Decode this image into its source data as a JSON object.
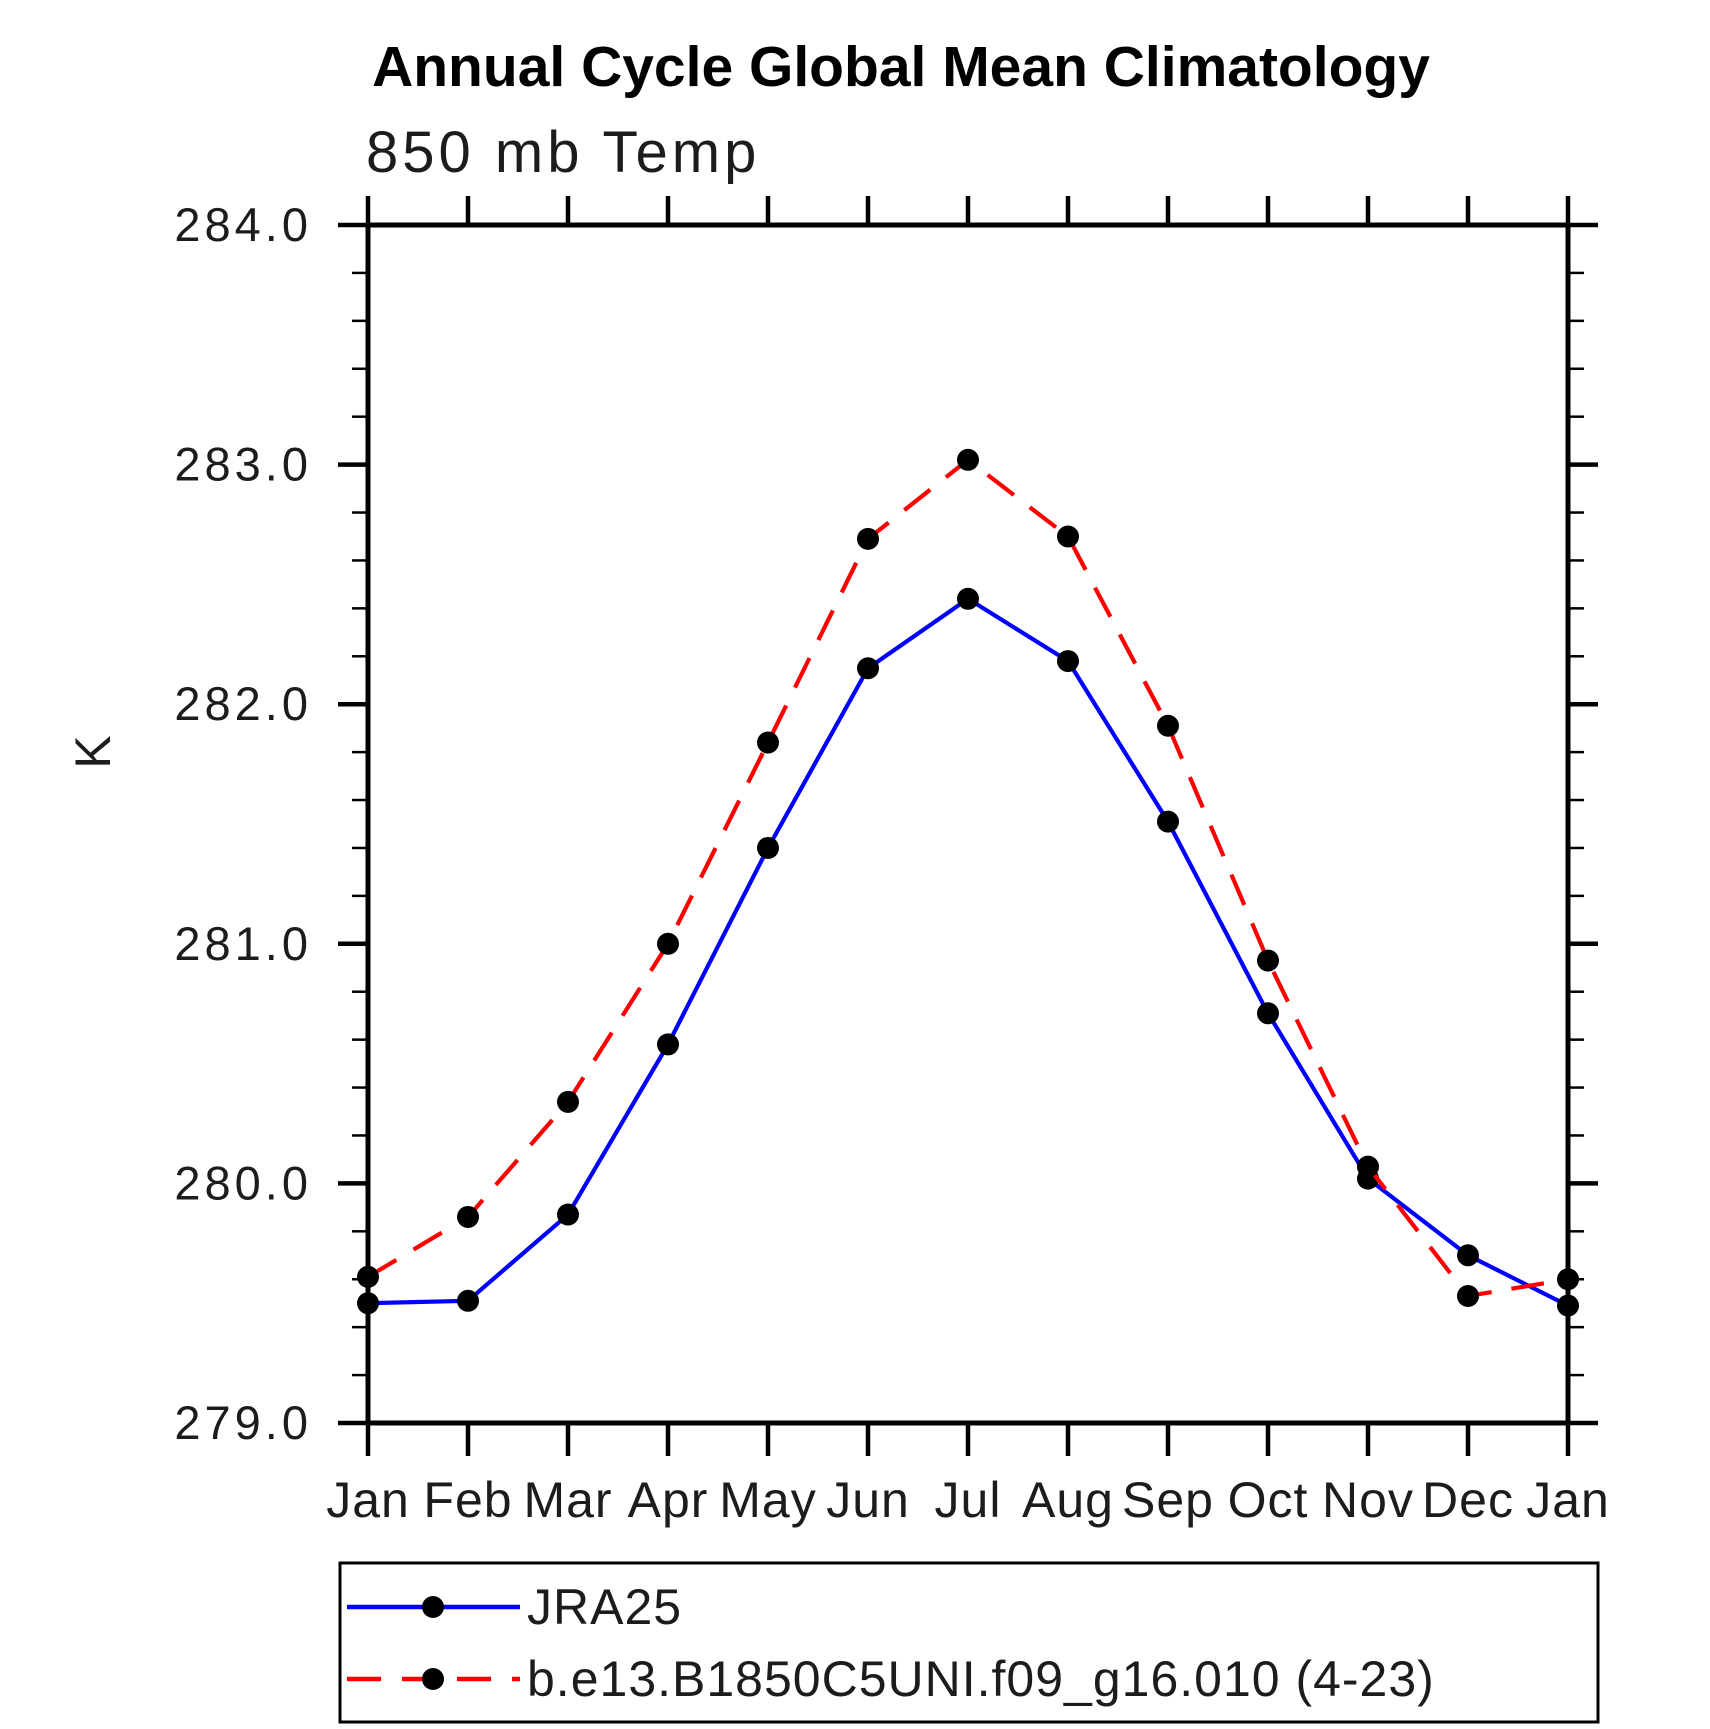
{
  "page": {
    "background": "#ffffff"
  },
  "chart_data": {
    "type": "line",
    "title": "Annual Cycle Global Mean Climatology",
    "subtitle": "850 mb Temp",
    "ylabel": "K",
    "categories": [
      "Jan",
      "Feb",
      "Mar",
      "Apr",
      "May",
      "Jun",
      "Jul",
      "Aug",
      "Sep",
      "Oct",
      "Nov",
      "Dec",
      "Jan"
    ],
    "ylim": [
      279.0,
      284.0
    ],
    "ytick_major_interval": 1.0,
    "ytick_minor_interval": 0.2,
    "ytick_labels": [
      "279.0",
      "280.0",
      "281.0",
      "282.0",
      "283.0",
      "284.0"
    ],
    "grid": "off",
    "legend_position": "bottom-left-box",
    "marker_color": "#000000",
    "axis_color": "#000000",
    "series": [
      {
        "name": "JRA25",
        "color": "#0000ff",
        "line_style": "solid",
        "marker": "circle",
        "values": [
          279.5,
          279.51,
          279.87,
          280.58,
          281.4,
          282.15,
          282.44,
          282.18,
          281.51,
          280.71,
          280.02,
          279.7,
          279.49
        ]
      },
      {
        "name": "b.e13.B1850C5UNI.f09_g16.010 (4-23)",
        "color": "#ff0000",
        "line_style": "dashed",
        "marker": "circle",
        "values": [
          279.61,
          279.86,
          280.34,
          281.0,
          281.84,
          282.69,
          283.02,
          282.7,
          281.91,
          280.93,
          280.07,
          279.53,
          279.6
        ]
      }
    ]
  }
}
